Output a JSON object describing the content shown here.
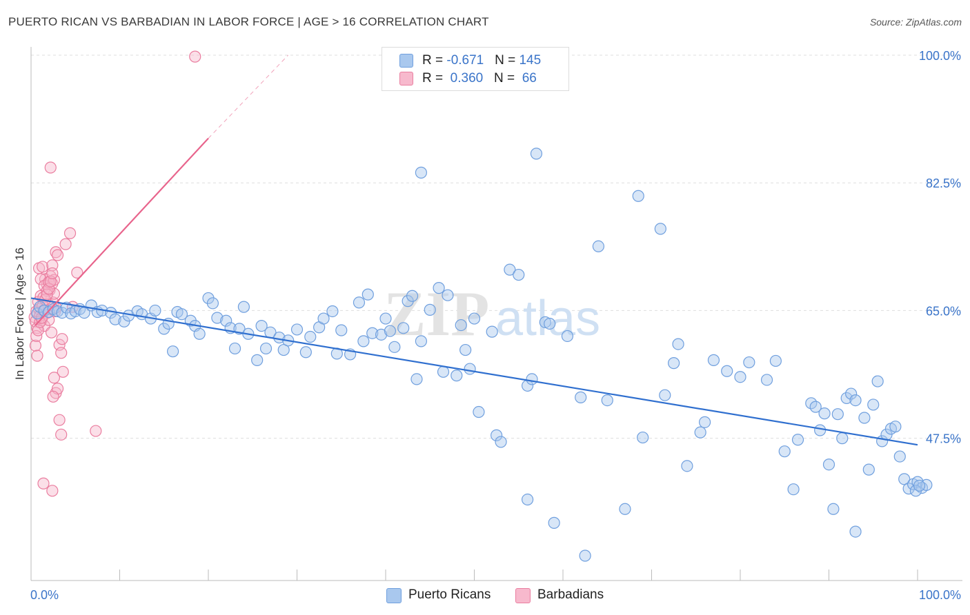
{
  "title": "PUERTO RICAN VS BARBADIAN IN LABOR FORCE | AGE > 16 CORRELATION CHART",
  "source": "Source: ZipAtlas.com",
  "watermark": {
    "zip": "ZIP",
    "atlas": "atlas"
  },
  "colors": {
    "blue_fill": "#a9c8ee",
    "blue_stroke": "#6f9fde",
    "blue_line": "#2f6fcf",
    "pink_fill": "#f7b9cd",
    "pink_stroke": "#ea7d9f",
    "pink_line": "#e8648c",
    "axis_label": "#3a74c9",
    "grid": "#dddddd"
  },
  "legend": {
    "rows": [
      {
        "r_label": "R = ",
        "r_value": "-0.671",
        "n_label": "N = ",
        "n_value": "145"
      },
      {
        "r_label": "R = ",
        "r_value": " 0.360",
        "n_label": "N = ",
        "n_value": " 66"
      }
    ]
  },
  "bottom_legend": [
    "Puerto Ricans",
    "Barbadians"
  ],
  "chart_data": {
    "type": "scatter",
    "title": "PUERTO RICAN VS BARBADIAN IN LABOR FORCE | AGE > 16 CORRELATION CHART",
    "xlabel": "",
    "ylabel": "In Labor Force | Age > 16",
    "xlim": [
      0,
      100
    ],
    "ylim": [
      28,
      100
    ],
    "x_tick_labels": [
      "0.0%",
      "100.0%"
    ],
    "y_tick_labels": [
      "100.0%",
      "82.5%",
      "65.0%",
      "47.5%"
    ],
    "y_ticks": [
      100,
      82.5,
      65,
      47.5
    ],
    "grid": true,
    "legend_position": "top-center",
    "series": [
      {
        "name": "Puerto Ricans",
        "r": -0.671,
        "n": 145,
        "trend": {
          "x": [
            0,
            100
          ],
          "y": [
            66.7,
            46.6
          ]
        },
        "points": [
          [
            0.7,
            64.6
          ],
          [
            1.0,
            65.5
          ],
          [
            1.5,
            65.0
          ],
          [
            2.0,
            64.8
          ],
          [
            2.5,
            65.2
          ],
          [
            3.0,
            64.9
          ],
          [
            3.5,
            64.7
          ],
          [
            4.0,
            65.4
          ],
          [
            4.5,
            64.6
          ],
          [
            5.0,
            64.9
          ],
          [
            5.5,
            65.2
          ],
          [
            6.0,
            64.7
          ],
          [
            6.8,
            65.7
          ],
          [
            7.5,
            64.8
          ],
          [
            8.0,
            65.0
          ],
          [
            9.0,
            64.7
          ],
          [
            9.5,
            63.8
          ],
          [
            10.5,
            63.5
          ],
          [
            11.0,
            64.3
          ],
          [
            12.0,
            64.9
          ],
          [
            12.5,
            64.5
          ],
          [
            13.5,
            63.9
          ],
          [
            14.0,
            65.0
          ],
          [
            15.0,
            62.5
          ],
          [
            15.5,
            63.2
          ],
          [
            16.0,
            59.4
          ],
          [
            16.5,
            64.8
          ],
          [
            17.0,
            64.5
          ],
          [
            18.0,
            63.6
          ],
          [
            18.5,
            62.9
          ],
          [
            19.0,
            61.8
          ],
          [
            20.0,
            66.7
          ],
          [
            20.5,
            66.0
          ],
          [
            21.0,
            64.0
          ],
          [
            22.0,
            63.6
          ],
          [
            22.5,
            62.6
          ],
          [
            23.0,
            59.8
          ],
          [
            23.5,
            62.5
          ],
          [
            24.0,
            65.5
          ],
          [
            24.5,
            61.8
          ],
          [
            25.5,
            58.2
          ],
          [
            26.0,
            62.9
          ],
          [
            26.5,
            59.8
          ],
          [
            27.0,
            62.0
          ],
          [
            28.0,
            61.3
          ],
          [
            28.5,
            59.6
          ],
          [
            29.0,
            60.9
          ],
          [
            30.0,
            62.4
          ],
          [
            31.0,
            59.3
          ],
          [
            31.5,
            61.4
          ],
          [
            32.5,
            62.7
          ],
          [
            33.0,
            63.9
          ],
          [
            34.0,
            64.9
          ],
          [
            34.5,
            59.1
          ],
          [
            35.0,
            62.3
          ],
          [
            36.0,
            59.0
          ],
          [
            37.0,
            66.1
          ],
          [
            37.5,
            60.8
          ],
          [
            38.0,
            67.2
          ],
          [
            38.5,
            61.9
          ],
          [
            39.5,
            61.7
          ],
          [
            40.0,
            63.9
          ],
          [
            40.5,
            62.2
          ],
          [
            41.0,
            60.0
          ],
          [
            42.0,
            62.6
          ],
          [
            42.5,
            66.3
          ],
          [
            43.0,
            67.0
          ],
          [
            43.5,
            55.6
          ],
          [
            44.0,
            60.8
          ],
          [
            44.0,
            83.9
          ],
          [
            45.0,
            65.1
          ],
          [
            46.0,
            68.1
          ],
          [
            46.5,
            56.6
          ],
          [
            47.0,
            67.1
          ],
          [
            48.0,
            56.1
          ],
          [
            48.5,
            63.0
          ],
          [
            49.0,
            59.6
          ],
          [
            49.5,
            57.0
          ],
          [
            50.0,
            63.9
          ],
          [
            50.5,
            51.1
          ],
          [
            52.0,
            62.1
          ],
          [
            52.5,
            47.9
          ],
          [
            53.0,
            47.0
          ],
          [
            54.0,
            70.6
          ],
          [
            55.0,
            69.9
          ],
          [
            56.0,
            54.7
          ],
          [
            56.0,
            39.1
          ],
          [
            56.5,
            55.6
          ],
          [
            57.0,
            86.5
          ],
          [
            58.0,
            63.4
          ],
          [
            58.5,
            63.2
          ],
          [
            59.0,
            35.9
          ],
          [
            60.5,
            61.5
          ],
          [
            62.0,
            53.1
          ],
          [
            62.5,
            31.4
          ],
          [
            64.0,
            73.8
          ],
          [
            65.0,
            52.7
          ],
          [
            67.0,
            37.8
          ],
          [
            68.5,
            80.7
          ],
          [
            69.0,
            47.6
          ],
          [
            71.0,
            76.2
          ],
          [
            71.5,
            53.4
          ],
          [
            72.5,
            57.8
          ],
          [
            73.0,
            60.4
          ],
          [
            74.0,
            43.7
          ],
          [
            75.5,
            48.3
          ],
          [
            76.0,
            49.7
          ],
          [
            77.0,
            58.2
          ],
          [
            78.5,
            56.7
          ],
          [
            80.0,
            55.9
          ],
          [
            81.0,
            57.9
          ],
          [
            83.0,
            55.5
          ],
          [
            84.0,
            58.1
          ],
          [
            85.0,
            45.7
          ],
          [
            86.0,
            40.5
          ],
          [
            86.5,
            47.3
          ],
          [
            88.0,
            52.3
          ],
          [
            88.5,
            51.8
          ],
          [
            89.0,
            48.6
          ],
          [
            89.5,
            50.9
          ],
          [
            90.0,
            43.9
          ],
          [
            90.5,
            37.8
          ],
          [
            91.0,
            50.8
          ],
          [
            91.5,
            47.5
          ],
          [
            92.0,
            53.0
          ],
          [
            92.5,
            53.6
          ],
          [
            93.0,
            52.7
          ],
          [
            93.0,
            34.7
          ],
          [
            94.0,
            50.3
          ],
          [
            94.5,
            43.2
          ],
          [
            95.0,
            52.1
          ],
          [
            95.5,
            55.3
          ],
          [
            96.0,
            47.1
          ],
          [
            96.5,
            48.0
          ],
          [
            97.0,
            48.8
          ],
          [
            97.5,
            49.1
          ],
          [
            98.0,
            45.0
          ],
          [
            98.5,
            41.9
          ],
          [
            99.0,
            40.6
          ],
          [
            99.5,
            41.2
          ],
          [
            100.0,
            41.5
          ],
          [
            100.5,
            40.7
          ],
          [
            101.0,
            41.1
          ],
          [
            99.8,
            40.3
          ],
          [
            100.2,
            41.0
          ]
        ]
      },
      {
        "name": "Barbadians",
        "r": 0.36,
        "n": 66,
        "trend": {
          "x": [
            0.5,
            20
          ],
          "y": [
            63.0,
            88.6
          ]
        },
        "trend_dashed": {
          "x": [
            20,
            29
          ],
          "y": [
            88.6,
            100
          ]
        },
        "points": [
          [
            0.4,
            64.1
          ],
          [
            0.5,
            63.5
          ],
          [
            0.6,
            64.9
          ],
          [
            0.7,
            62.6
          ],
          [
            0.8,
            66.2
          ],
          [
            0.9,
            65.2
          ],
          [
            1.0,
            64.3
          ],
          [
            1.1,
            67.0
          ],
          [
            1.2,
            63.7
          ],
          [
            1.3,
            65.6
          ],
          [
            1.4,
            66.8
          ],
          [
            1.5,
            62.9
          ],
          [
            1.6,
            69.3
          ],
          [
            1.7,
            64.6
          ],
          [
            1.8,
            68.6
          ],
          [
            1.9,
            65.9
          ],
          [
            2.0,
            63.7
          ],
          [
            2.1,
            67.8
          ],
          [
            2.2,
            69.7
          ],
          [
            2.3,
            62.0
          ],
          [
            2.4,
            68.7
          ],
          [
            2.5,
            66.1
          ],
          [
            2.6,
            67.3
          ],
          [
            2.7,
            64.9
          ],
          [
            2.8,
            65.4
          ],
          [
            0.5,
            60.2
          ],
          [
            0.7,
            58.8
          ],
          [
            0.9,
            70.8
          ],
          [
            1.1,
            69.3
          ],
          [
            1.3,
            71.0
          ],
          [
            1.5,
            68.4
          ],
          [
            1.8,
            67.7
          ],
          [
            2.0,
            68.9
          ],
          [
            2.2,
            84.6
          ],
          [
            2.4,
            71.2
          ],
          [
            2.6,
            69.2
          ],
          [
            2.8,
            73.0
          ],
          [
            3.0,
            72.6
          ],
          [
            3.2,
            60.3
          ],
          [
            3.4,
            59.2
          ],
          [
            3.6,
            56.6
          ],
          [
            0.6,
            61.5
          ],
          [
            0.8,
            62.3
          ],
          [
            1.0,
            63.4
          ],
          [
            1.2,
            64.0
          ],
          [
            1.4,
            65.0
          ],
          [
            1.6,
            66.5
          ],
          [
            1.8,
            67.2
          ],
          [
            2.0,
            68.0
          ],
          [
            2.2,
            69.0
          ],
          [
            2.4,
            70.1
          ],
          [
            2.6,
            55.8
          ],
          [
            2.8,
            53.7
          ],
          [
            3.0,
            54.3
          ],
          [
            3.2,
            50.0
          ],
          [
            3.4,
            48.0
          ],
          [
            2.5,
            53.2
          ],
          [
            1.4,
            41.3
          ],
          [
            2.4,
            40.3
          ],
          [
            3.9,
            74.1
          ],
          [
            4.4,
            75.6
          ],
          [
            5.2,
            70.2
          ],
          [
            7.3,
            48.5
          ],
          [
            18.5,
            99.8
          ],
          [
            3.5,
            61.1
          ],
          [
            4.7,
            65.5
          ]
        ]
      }
    ]
  }
}
